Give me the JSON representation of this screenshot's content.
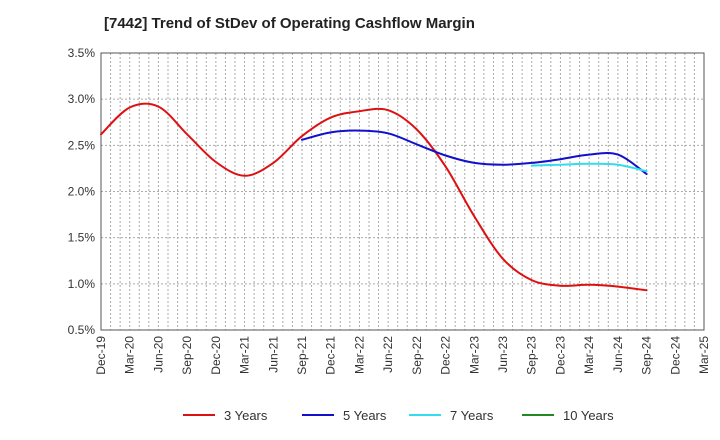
{
  "chart_data": {
    "type": "line",
    "title": "[7442]  Trend of StDev of Operating Cashflow Margin",
    "xlabel": "",
    "ylabel": "",
    "x_ticks": [
      "Dec-19",
      "Mar-20",
      "Jun-20",
      "Sep-20",
      "Dec-20",
      "Mar-21",
      "Jun-21",
      "Sep-21",
      "Dec-21",
      "Mar-22",
      "Jun-22",
      "Sep-22",
      "Dec-22",
      "Mar-23",
      "Jun-23",
      "Sep-23",
      "Dec-23",
      "Mar-24",
      "Jun-24",
      "Sep-24",
      "Dec-24",
      "Mar-25"
    ],
    "y_ticks": [
      "0.5%",
      "1.0%",
      "1.5%",
      "2.0%",
      "2.5%",
      "3.0%",
      "3.5%"
    ],
    "ylim": [
      0.5,
      3.5
    ],
    "grid": true,
    "legend_position": "bottom",
    "series": [
      {
        "name": "3 Years",
        "color": "#dd1111",
        "x": [
          "Dec-19",
          "Mar-20",
          "Jun-20",
          "Sep-20",
          "Dec-20",
          "Mar-21",
          "Jun-21",
          "Sep-21",
          "Dec-21",
          "Mar-22",
          "Jun-22",
          "Sep-22",
          "Dec-22",
          "Mar-23",
          "Jun-23",
          "Sep-23",
          "Dec-23",
          "Mar-24",
          "Jun-24",
          "Sep-24"
        ],
        "values": [
          2.62,
          2.91,
          2.92,
          2.62,
          2.32,
          2.17,
          2.31,
          2.6,
          2.8,
          2.87,
          2.88,
          2.67,
          2.27,
          1.73,
          1.27,
          1.04,
          0.98,
          0.99,
          0.97,
          0.93
        ]
      },
      {
        "name": "5 Years",
        "color": "#1111cc",
        "x": [
          "Sep-21",
          "Dec-21",
          "Mar-22",
          "Jun-22",
          "Sep-22",
          "Dec-22",
          "Mar-23",
          "Jun-23",
          "Sep-23",
          "Dec-23",
          "Mar-24",
          "Jun-24",
          "Sep-24"
        ],
        "values": [
          2.56,
          2.64,
          2.66,
          2.63,
          2.51,
          2.39,
          2.31,
          2.29,
          2.31,
          2.35,
          2.4,
          2.4,
          2.19
        ]
      },
      {
        "name": "7 Years",
        "color": "#33ddee",
        "x": [
          "Sep-23",
          "Dec-23",
          "Mar-24",
          "Jun-24",
          "Sep-24"
        ],
        "values": [
          2.28,
          2.29,
          2.3,
          2.29,
          2.22
        ]
      },
      {
        "name": "10 Years",
        "color": "#228822",
        "x": [],
        "values": []
      }
    ]
  }
}
